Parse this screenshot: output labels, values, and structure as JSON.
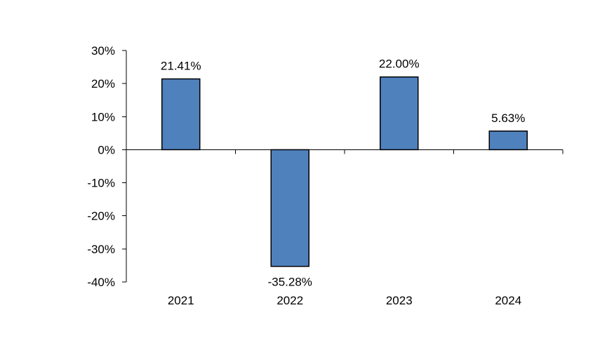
{
  "chart_data": {
    "type": "bar",
    "title": "",
    "xlabel": "",
    "ylabel": "",
    "categories": [
      "2021",
      "2022",
      "2023",
      "2024"
    ],
    "values": [
      21.41,
      -35.28,
      22.0,
      5.63
    ],
    "data_labels": [
      "21.41%",
      "-35.28%",
      "22.00%",
      "5.63%"
    ],
    "ylim": [
      -40,
      30
    ],
    "yticks": [
      30,
      20,
      10,
      0,
      -10,
      -20,
      -30,
      -40
    ],
    "ytick_labels": [
      "30%",
      "20%",
      "10%",
      "0%",
      "-10%",
      "-20%",
      "-30%",
      "-40%"
    ],
    "grid": false,
    "legend": "none",
    "bar_color": "#4f81bd"
  }
}
